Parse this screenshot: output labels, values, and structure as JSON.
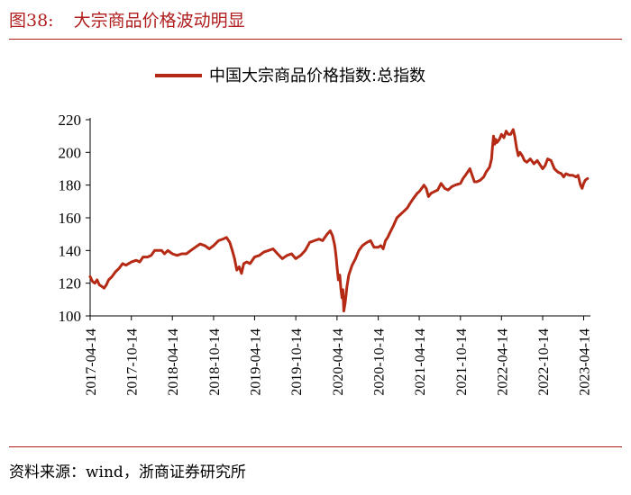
{
  "figure": {
    "label": "图38:",
    "title": "大宗商品价格波动明显",
    "source": "资料来源：wind，浙商证券研究所"
  },
  "colors": {
    "accent": "#b01c1c",
    "line": "#b52a14"
  },
  "chart_data": {
    "type": "line",
    "title": "",
    "xlabel": "",
    "ylabel": "",
    "ylim": [
      100,
      220
    ],
    "yticks": [
      100,
      120,
      140,
      160,
      180,
      200,
      220
    ],
    "xlim": [
      "2017-04-14",
      "2023-05-14"
    ],
    "xticks": [
      "2017-04-14",
      "2017-10-14",
      "2018-04-14",
      "2018-10-14",
      "2019-04-14",
      "2019-10-14",
      "2020-04-14",
      "2020-10-14",
      "2021-04-14",
      "2021-10-14",
      "2022-04-14",
      "2022-10-14",
      "2023-04-14"
    ],
    "legend_position": "top-center",
    "grid": false,
    "series": [
      {
        "name": "中国大宗商品价格指数:总指数",
        "points": [
          [
            "2017-04-14",
            124
          ],
          [
            "2017-04-25",
            121
          ],
          [
            "2017-05-05",
            120
          ],
          [
            "2017-05-15",
            122
          ],
          [
            "2017-05-25",
            119
          ],
          [
            "2017-06-05",
            118
          ],
          [
            "2017-06-15",
            117
          ],
          [
            "2017-06-25",
            119
          ],
          [
            "2017-07-05",
            122
          ],
          [
            "2017-07-20",
            124
          ],
          [
            "2017-08-05",
            127
          ],
          [
            "2017-08-20",
            129
          ],
          [
            "2017-09-05",
            132
          ],
          [
            "2017-09-20",
            131
          ],
          [
            "2017-10-14",
            133
          ],
          [
            "2017-11-05",
            134
          ],
          [
            "2017-11-20",
            133
          ],
          [
            "2017-12-05",
            136
          ],
          [
            "2017-12-25",
            136
          ],
          [
            "2018-01-10",
            137
          ],
          [
            "2018-01-25",
            140
          ],
          [
            "2018-02-10",
            140
          ],
          [
            "2018-02-25",
            140
          ],
          [
            "2018-03-10",
            138
          ],
          [
            "2018-03-25",
            140
          ],
          [
            "2018-04-14",
            138
          ],
          [
            "2018-05-05",
            137
          ],
          [
            "2018-05-25",
            138
          ],
          [
            "2018-06-15",
            138
          ],
          [
            "2018-07-05",
            140
          ],
          [
            "2018-07-25",
            142
          ],
          [
            "2018-08-15",
            144
          ],
          [
            "2018-09-05",
            143
          ],
          [
            "2018-09-25",
            141
          ],
          [
            "2018-10-14",
            143
          ],
          [
            "2018-11-05",
            146
          ],
          [
            "2018-11-25",
            147
          ],
          [
            "2018-12-10",
            148
          ],
          [
            "2018-12-25",
            145
          ],
          [
            "2019-01-05",
            140
          ],
          [
            "2019-01-15",
            135
          ],
          [
            "2019-01-25",
            128
          ],
          [
            "2019-02-05",
            130
          ],
          [
            "2019-02-15",
            126
          ],
          [
            "2019-02-25",
            132
          ],
          [
            "2019-03-10",
            133
          ],
          [
            "2019-03-25",
            132
          ],
          [
            "2019-04-14",
            136
          ],
          [
            "2019-05-05",
            137
          ],
          [
            "2019-05-25",
            139
          ],
          [
            "2019-06-15",
            140
          ],
          [
            "2019-07-05",
            141
          ],
          [
            "2019-07-25",
            138
          ],
          [
            "2019-08-15",
            135
          ],
          [
            "2019-09-05",
            137
          ],
          [
            "2019-09-25",
            138
          ],
          [
            "2019-10-14",
            135
          ],
          [
            "2019-11-05",
            137
          ],
          [
            "2019-11-25",
            140
          ],
          [
            "2019-12-15",
            145
          ],
          [
            "2020-01-05",
            146
          ],
          [
            "2020-01-25",
            147
          ],
          [
            "2020-02-10",
            146
          ],
          [
            "2020-03-01",
            150
          ],
          [
            "2020-03-15",
            152
          ],
          [
            "2020-03-25",
            149
          ],
          [
            "2020-04-01",
            145
          ],
          [
            "2020-04-05",
            142
          ],
          [
            "2020-04-10",
            136
          ],
          [
            "2020-04-14",
            130
          ],
          [
            "2020-04-20",
            122
          ],
          [
            "2020-04-26",
            125
          ],
          [
            "2020-05-01",
            117
          ],
          [
            "2020-05-06",
            111
          ],
          [
            "2020-05-10",
            116
          ],
          [
            "2020-05-14",
            103
          ],
          [
            "2020-05-20",
            108
          ],
          [
            "2020-05-28",
            118
          ],
          [
            "2020-06-05",
            125
          ],
          [
            "2020-06-20",
            131
          ],
          [
            "2020-07-05",
            135
          ],
          [
            "2020-07-20",
            140
          ],
          [
            "2020-08-05",
            143
          ],
          [
            "2020-08-25",
            145
          ],
          [
            "2020-09-10",
            146
          ],
          [
            "2020-09-25",
            142
          ],
          [
            "2020-10-14",
            142
          ],
          [
            "2020-10-25",
            143
          ],
          [
            "2020-11-05",
            141
          ],
          [
            "2020-11-15",
            146
          ],
          [
            "2020-11-25",
            148
          ],
          [
            "2020-12-05",
            151
          ],
          [
            "2020-12-20",
            155
          ],
          [
            "2021-01-05",
            160
          ],
          [
            "2021-01-20",
            162
          ],
          [
            "2021-02-05",
            164
          ],
          [
            "2021-02-20",
            166
          ],
          [
            "2021-03-05",
            169
          ],
          [
            "2021-03-20",
            172
          ],
          [
            "2021-04-05",
            175
          ],
          [
            "2021-04-14",
            176
          ],
          [
            "2021-04-25",
            178
          ],
          [
            "2021-05-05",
            180
          ],
          [
            "2021-05-15",
            178
          ],
          [
            "2021-05-25",
            173
          ],
          [
            "2021-06-05",
            175
          ],
          [
            "2021-06-20",
            176
          ],
          [
            "2021-07-05",
            177
          ],
          [
            "2021-07-20",
            181
          ],
          [
            "2021-08-05",
            178
          ],
          [
            "2021-08-20",
            177
          ],
          [
            "2021-09-05",
            179
          ],
          [
            "2021-09-20",
            180
          ],
          [
            "2021-10-14",
            181
          ],
          [
            "2021-10-25",
            184
          ],
          [
            "2021-11-05",
            186
          ],
          [
            "2021-11-15",
            188
          ],
          [
            "2021-11-25",
            190
          ],
          [
            "2021-12-05",
            186
          ],
          [
            "2021-12-15",
            182
          ],
          [
            "2021-12-25",
            182
          ],
          [
            "2022-01-10",
            183
          ],
          [
            "2022-01-25",
            185
          ],
          [
            "2022-02-05",
            188
          ],
          [
            "2022-02-20",
            191
          ],
          [
            "2022-03-01",
            196
          ],
          [
            "2022-03-05",
            203
          ],
          [
            "2022-03-10",
            210
          ],
          [
            "2022-03-15",
            205
          ],
          [
            "2022-03-20",
            208
          ],
          [
            "2022-03-25",
            206
          ],
          [
            "2022-04-05",
            208
          ],
          [
            "2022-04-14",
            211
          ],
          [
            "2022-04-25",
            209
          ],
          [
            "2022-05-05",
            213
          ],
          [
            "2022-05-15",
            211
          ],
          [
            "2022-05-25",
            211
          ],
          [
            "2022-06-05",
            214
          ],
          [
            "2022-06-12",
            210
          ],
          [
            "2022-06-20",
            203
          ],
          [
            "2022-06-28",
            198
          ],
          [
            "2022-07-05",
            200
          ],
          [
            "2022-07-15",
            198
          ],
          [
            "2022-07-25",
            195
          ],
          [
            "2022-08-05",
            194
          ],
          [
            "2022-08-20",
            196
          ],
          [
            "2022-09-05",
            193
          ],
          [
            "2022-09-20",
            195
          ],
          [
            "2022-10-14",
            190
          ],
          [
            "2022-10-25",
            192
          ],
          [
            "2022-11-05",
            196
          ],
          [
            "2022-11-20",
            195
          ],
          [
            "2022-12-05",
            190
          ],
          [
            "2022-12-20",
            188
          ],
          [
            "2023-01-05",
            187
          ],
          [
            "2023-01-15",
            185
          ],
          [
            "2023-01-25",
            187
          ],
          [
            "2023-02-10",
            186
          ],
          [
            "2023-02-25",
            186
          ],
          [
            "2023-03-10",
            185
          ],
          [
            "2023-03-20",
            186
          ],
          [
            "2023-03-31",
            180
          ],
          [
            "2023-04-07",
            178
          ],
          [
            "2023-04-14",
            181
          ],
          [
            "2023-04-21",
            183
          ],
          [
            "2023-05-01",
            184
          ]
        ]
      }
    ]
  }
}
